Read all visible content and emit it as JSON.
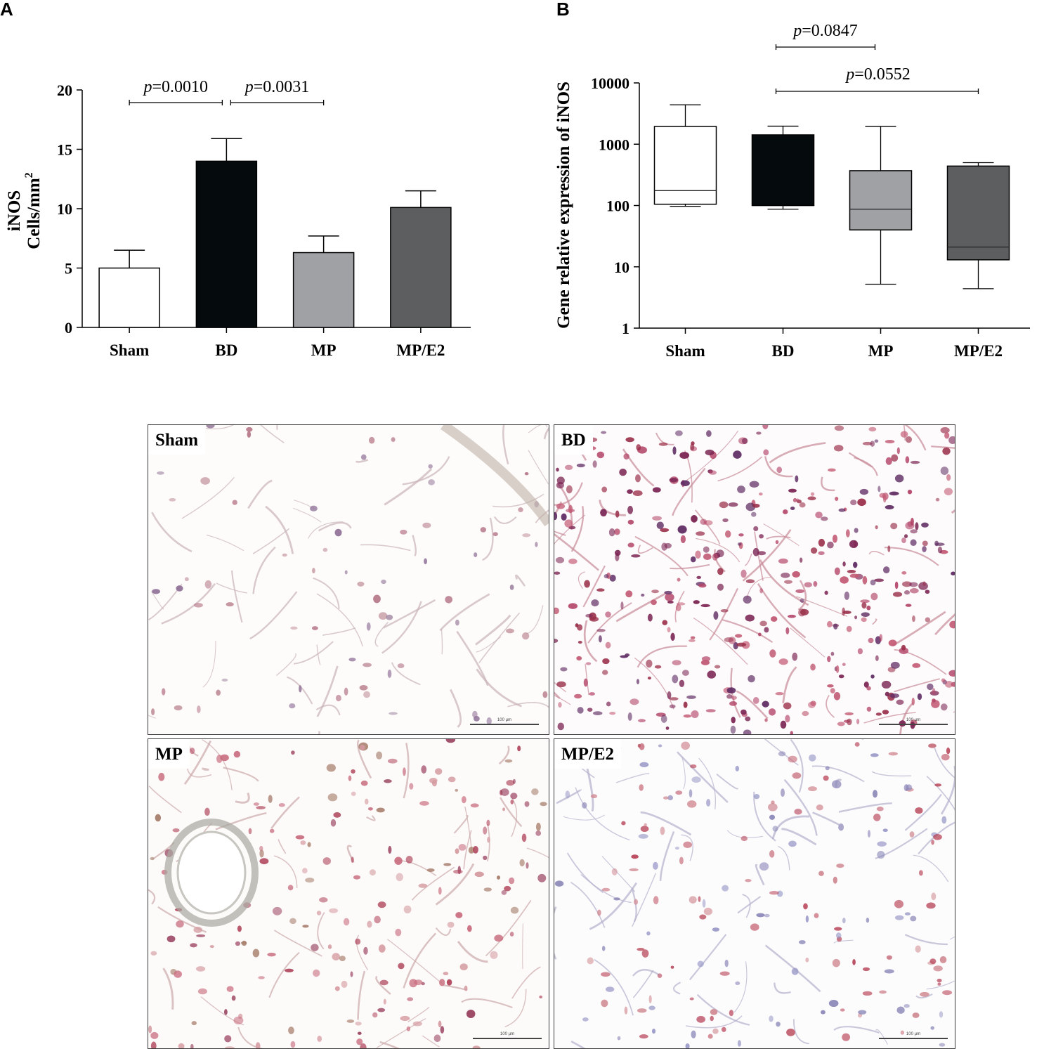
{
  "chart_data": [
    {
      "panel": "A",
      "type": "bar",
      "ylabel_line1": "iNOS",
      "ylabel_line2": "Cells/mm",
      "ylabel_sup": "2",
      "ylim": [
        0,
        20
      ],
      "yticks": [
        "0",
        "5",
        "10",
        "15",
        "20"
      ],
      "categories": [
        "Sham",
        "BD",
        "MP",
        "MP/E2"
      ],
      "values": [
        5.0,
        14.0,
        6.3,
        10.1
      ],
      "errors": [
        1.5,
        1.9,
        1.4,
        1.4
      ],
      "bar_colors": [
        "#ffffff",
        "#050a0c",
        "#a0a1a5",
        "#5d5e5f"
      ],
      "annotations": [
        {
          "p": "p",
          "value": "=0.0010",
          "from": "Sham",
          "to": "BD"
        },
        {
          "p": "p",
          "value": "=0.0031",
          "from": "BD",
          "to": "MP"
        }
      ]
    },
    {
      "panel": "B",
      "type": "box",
      "scale": "log",
      "ylabel": "Gene relative expression of iNOS",
      "ylim": [
        1,
        10000
      ],
      "yticks": [
        "1",
        "10",
        "100",
        "1000",
        "10000"
      ],
      "categories": [
        "Sham",
        "BD",
        "MP",
        "MP/E2"
      ],
      "boxes": [
        {
          "min": 97,
          "q1": 105,
          "median": 175,
          "q3": 1950,
          "max": 4400,
          "color": "#ffffff"
        },
        {
          "min": 87,
          "q1": 100,
          "median": 100,
          "q3": 1420,
          "max": 1970,
          "color": "#050a0c"
        },
        {
          "min": 5.2,
          "q1": 40,
          "median": 87,
          "q3": 370,
          "max": 1950,
          "color": "#a0a1a5"
        },
        {
          "min": 4.4,
          "q1": 13,
          "median": 21,
          "q3": 440,
          "max": 500,
          "color": "#5d5e5f"
        }
      ],
      "annotations": [
        {
          "p": "p",
          "value": "=0.0847",
          "from": "BD",
          "to": "MP"
        },
        {
          "p": "p",
          "value": "=0.0552",
          "from": "BD",
          "to": "MP/E2"
        }
      ]
    }
  ],
  "panel_letters": {
    "a": "A",
    "b": "B"
  },
  "micrographs": [
    {
      "label": "Sham",
      "scale": "100 µm",
      "stain": "light"
    },
    {
      "label": "BD",
      "scale": "100 µm",
      "stain": "heavy"
    },
    {
      "label": "MP",
      "scale": "100 µm",
      "stain": "medium"
    },
    {
      "label": "MP/E2",
      "scale": "100 µm",
      "stain": "blue"
    }
  ]
}
